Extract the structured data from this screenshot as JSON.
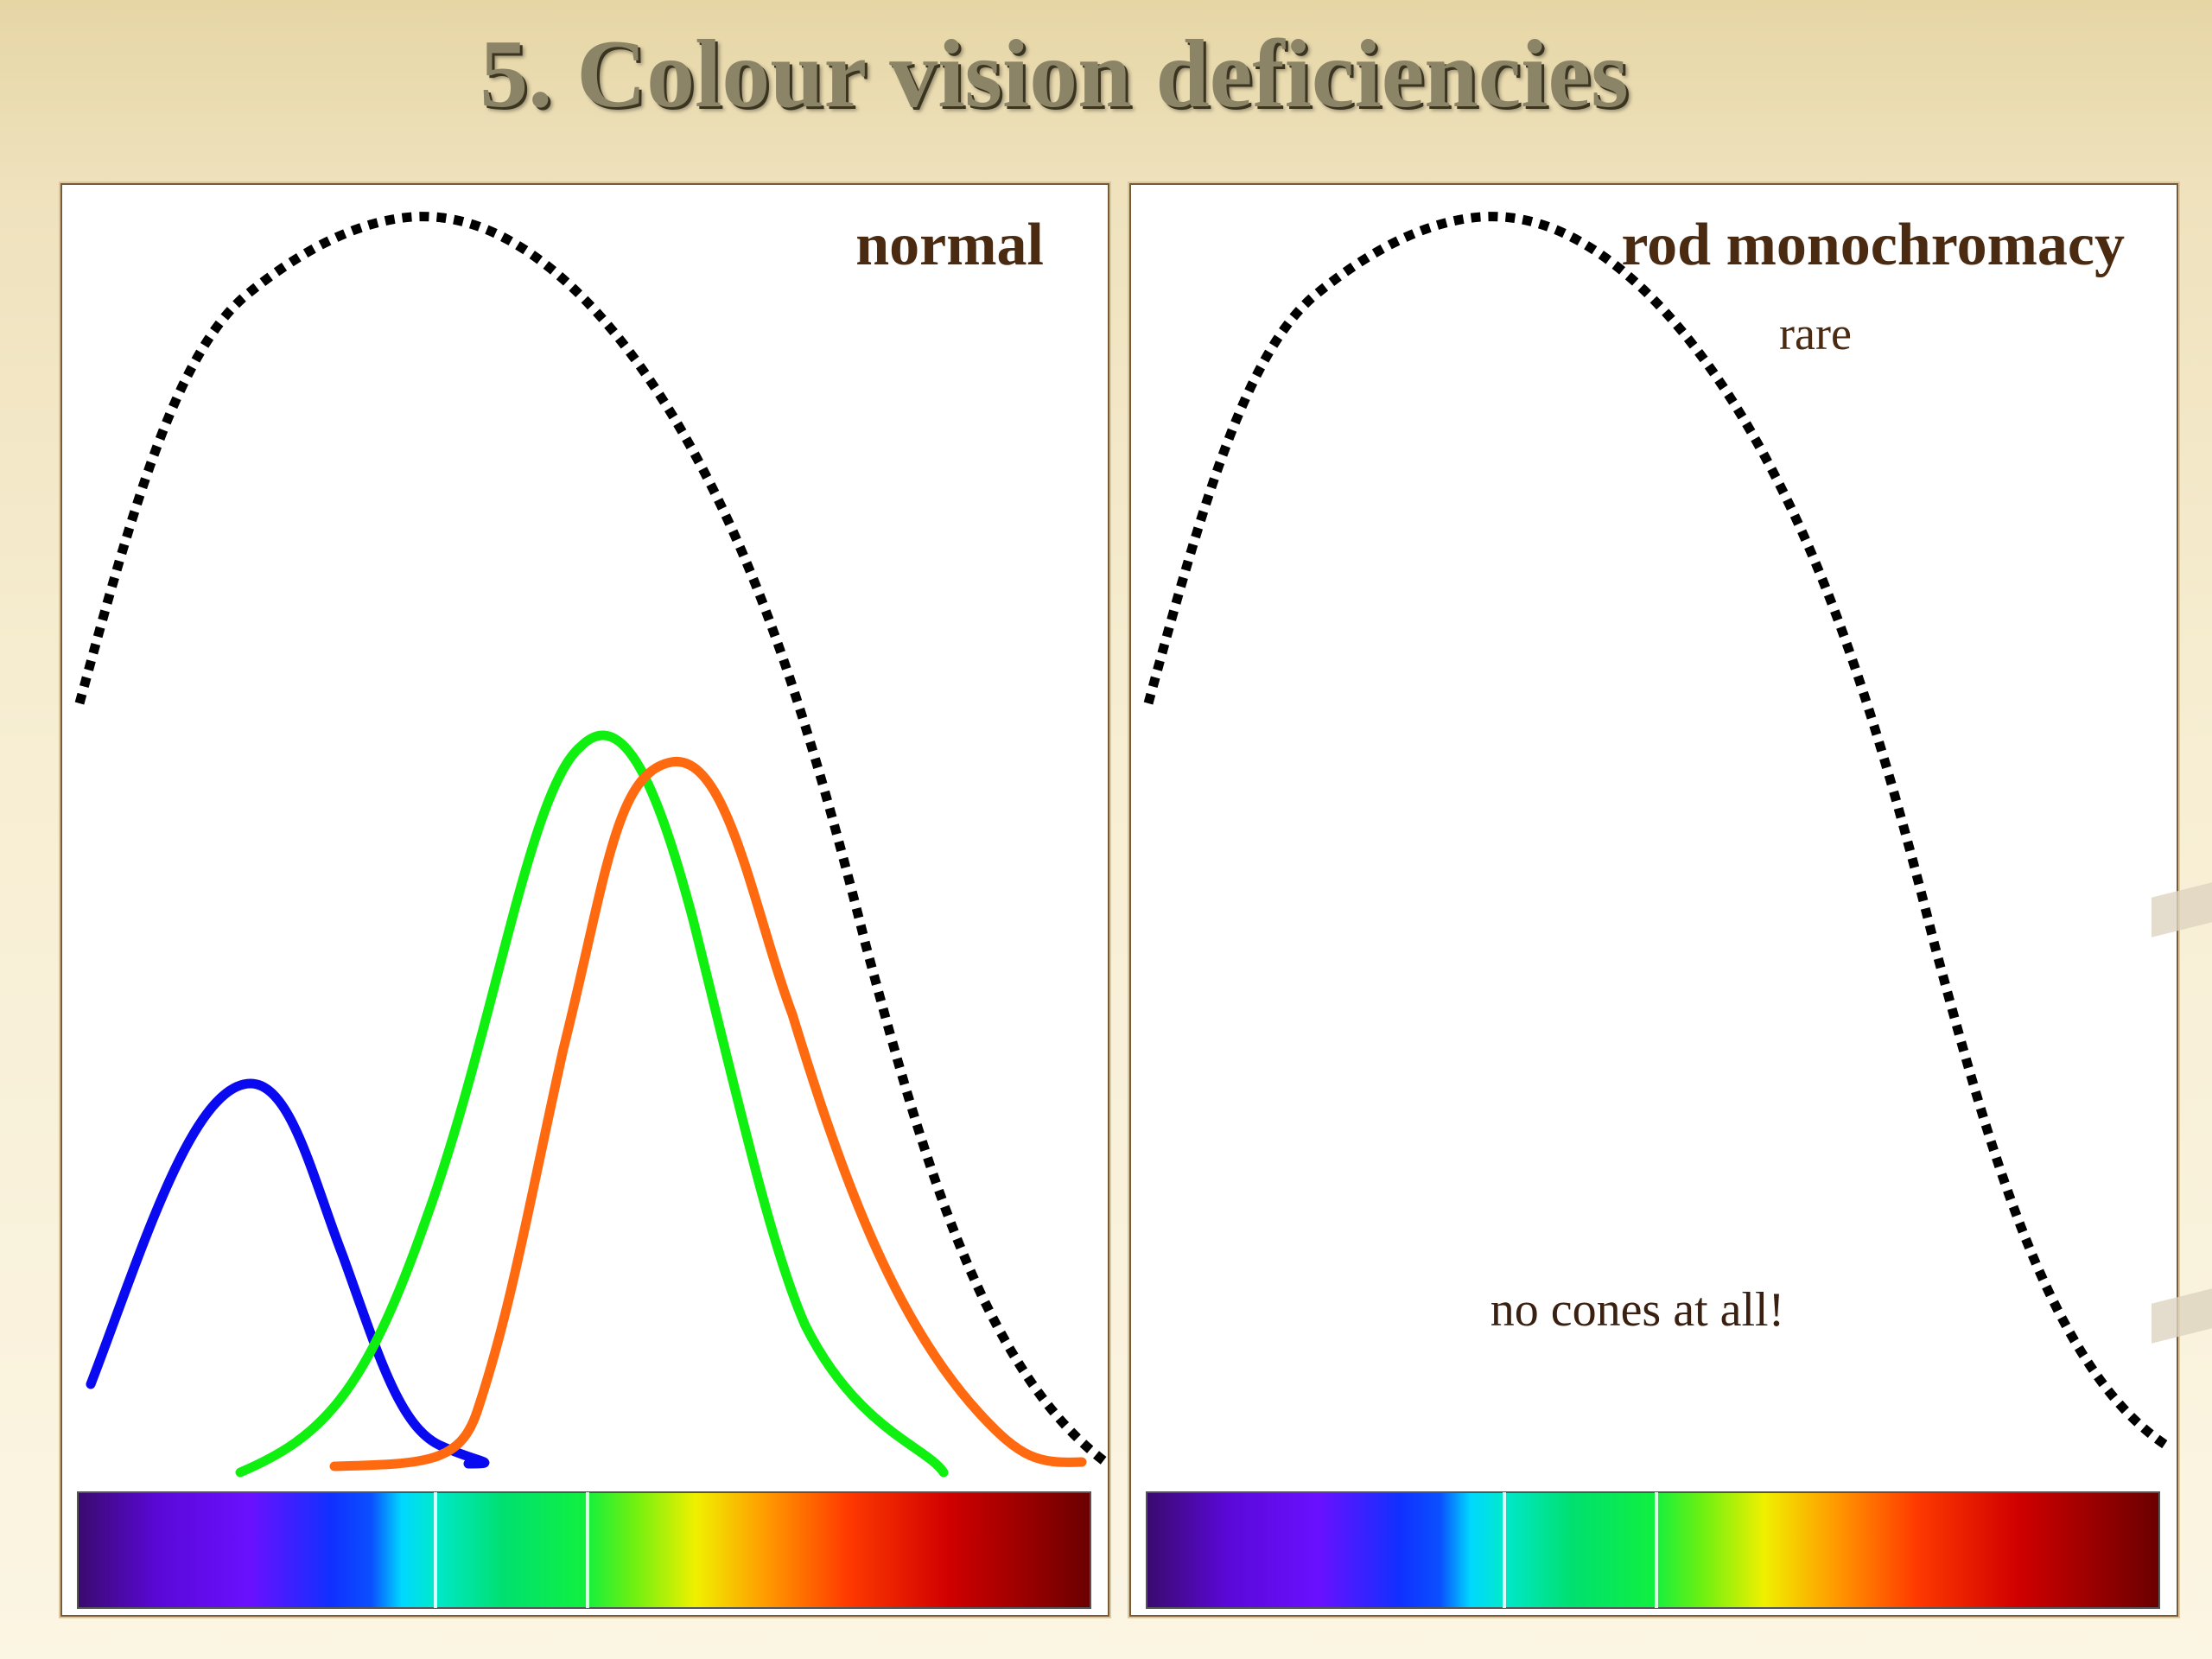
{
  "slide": {
    "title": "5. Colour vision deficiencies"
  },
  "panels": [
    {
      "label": "normal",
      "curves": [
        {
          "id": "rod",
          "color": "#000000",
          "style": "dotted"
        },
        {
          "id": "s-cone",
          "color": "#0000ff",
          "style": "solid"
        },
        {
          "id": "m-cone",
          "color": "#00ee00",
          "style": "solid"
        },
        {
          "id": "l-cone",
          "color": "#ff6600",
          "style": "solid"
        }
      ]
    },
    {
      "label": "rod monochromacy",
      "sublabel": "rare",
      "note": "no cones at all!",
      "curves": [
        {
          "id": "rod",
          "color": "#000000",
          "style": "dotted"
        }
      ]
    }
  ],
  "spectrum_bar": {
    "colors": [
      "#3a0a7a",
      "#6a0aff",
      "#1a1aff",
      "#00e5ff",
      "#00e676",
      "#39ff14",
      "#ffff00",
      "#ff8c00",
      "#ff2a00",
      "#c00000",
      "#700000"
    ]
  }
}
